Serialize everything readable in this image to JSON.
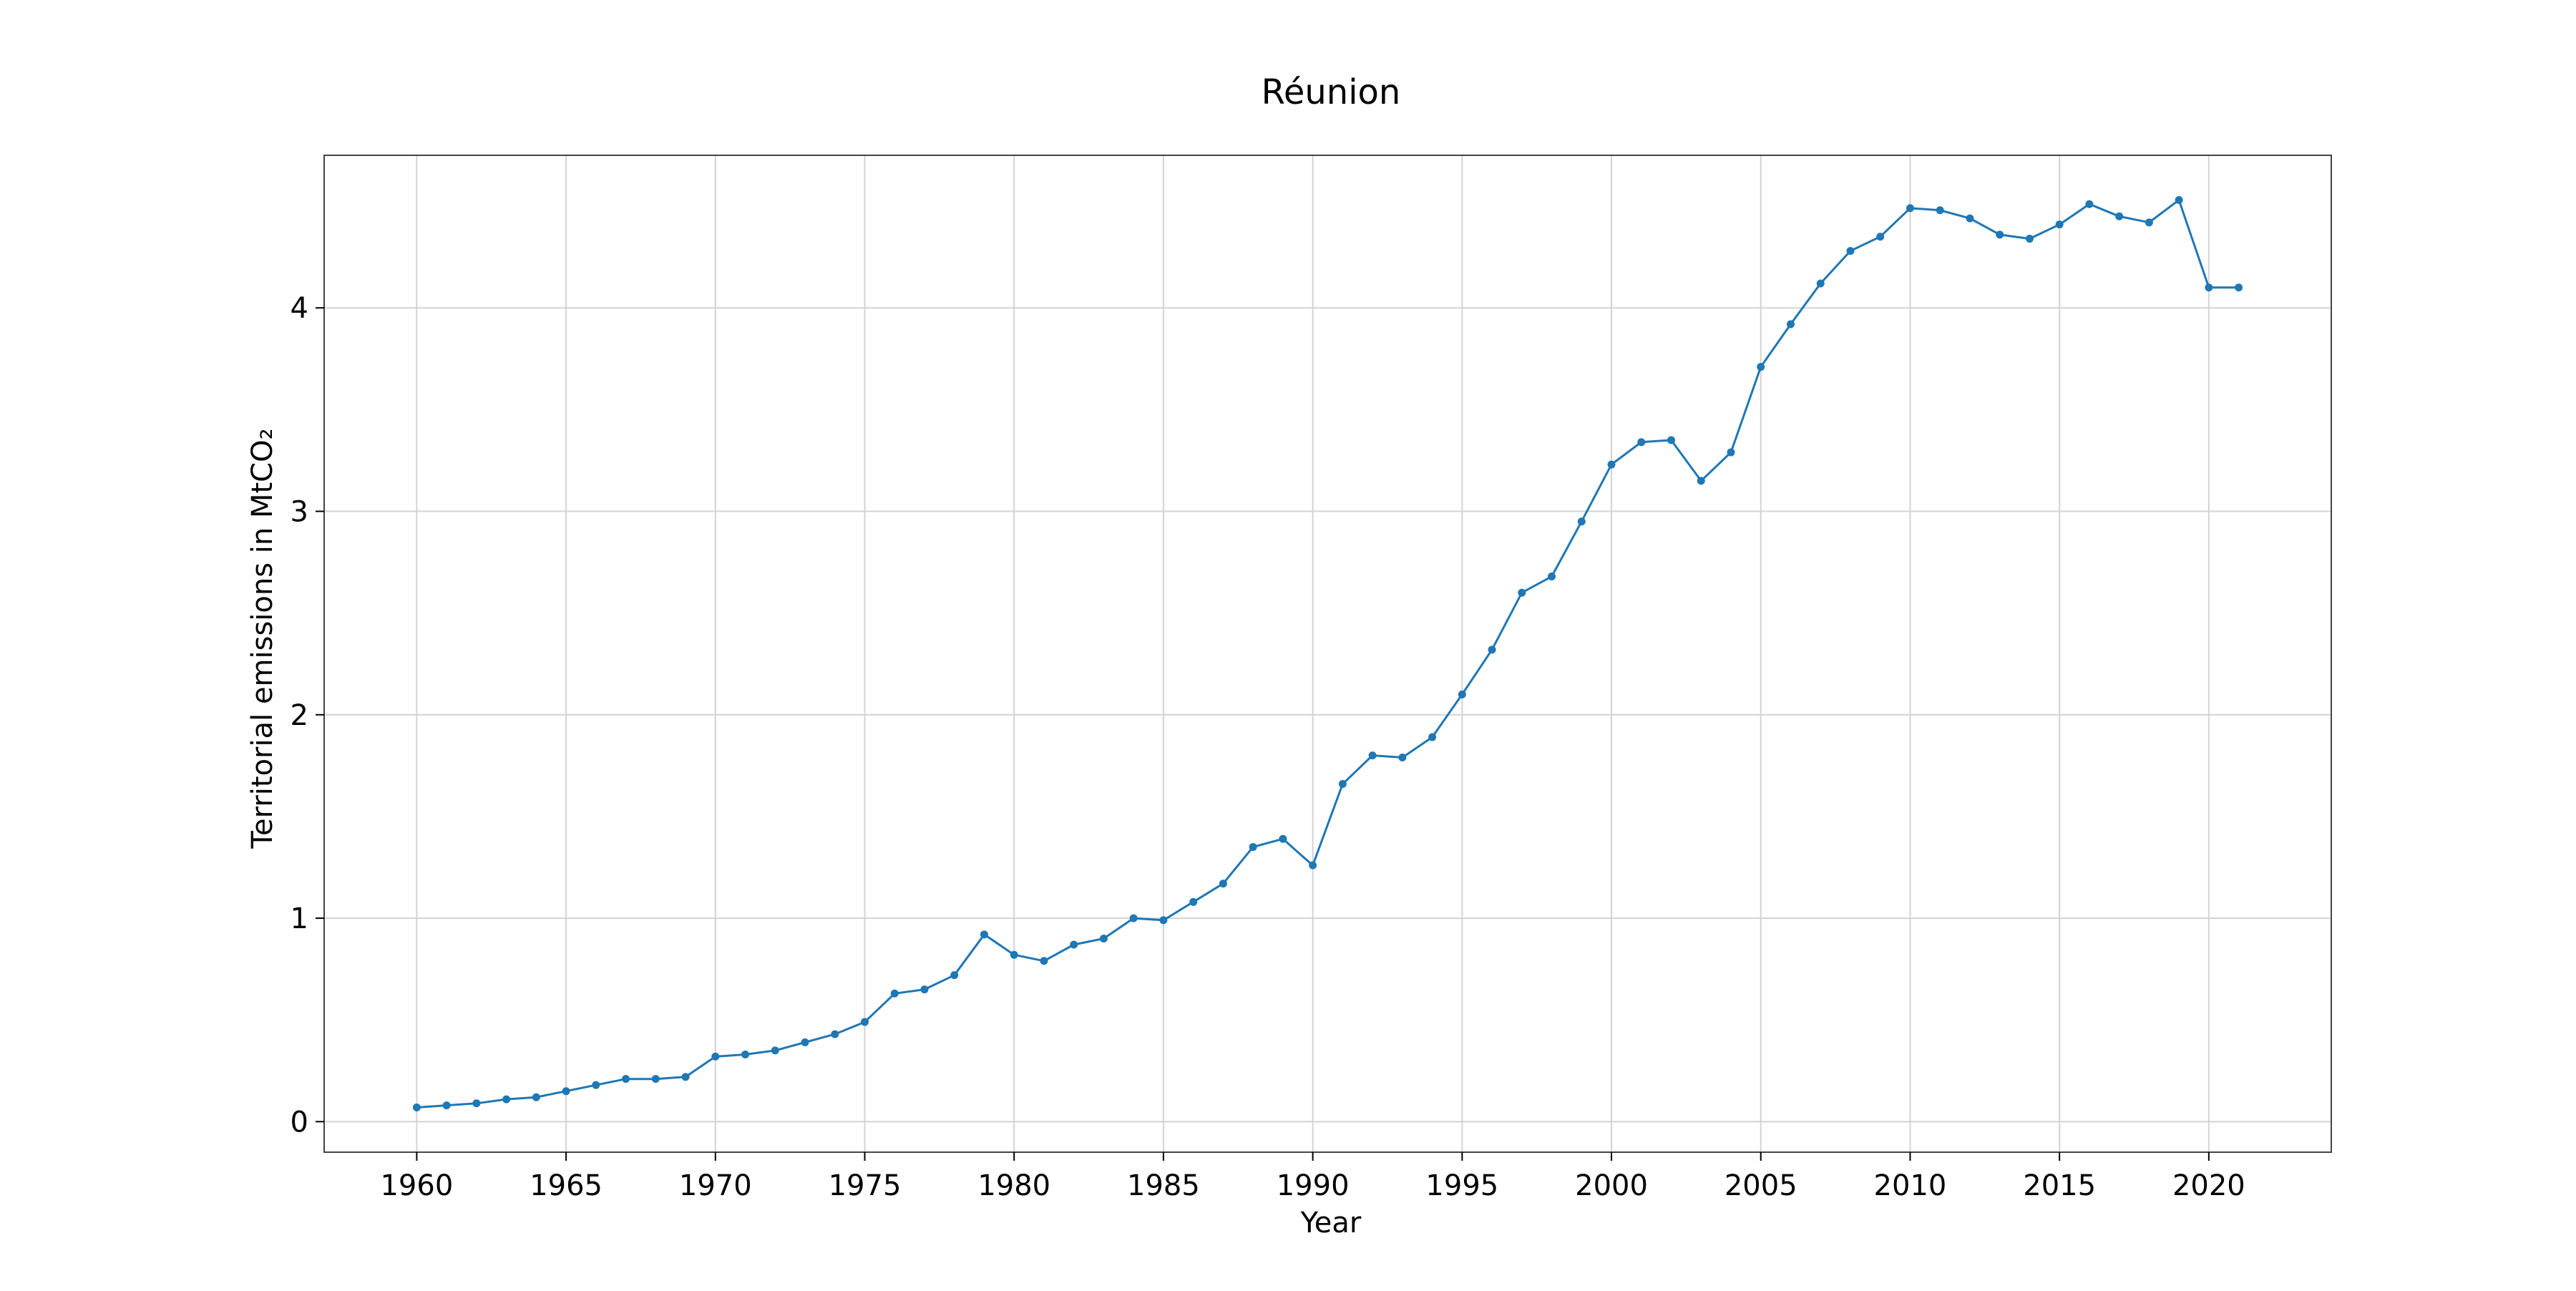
{
  "chart_data": {
    "type": "line",
    "title": "Réunion",
    "xlabel": "Year",
    "ylabel": "Territorial emissions in MtCO₂",
    "xlim": [
      1956.9,
      2024.1
    ],
    "ylim": [
      -0.15,
      4.75
    ],
    "x_ticks": [
      1960,
      1965,
      1970,
      1975,
      1980,
      1985,
      1990,
      1995,
      2000,
      2005,
      2010,
      2015,
      2020
    ],
    "y_ticks": [
      0,
      1,
      2,
      3,
      4
    ],
    "grid": true,
    "legend": "none",
    "colors": {
      "line": "#1f77b4",
      "grid": "#d3d3d3",
      "axes": "#444444"
    },
    "series": [
      {
        "x": [
          1960,
          1961,
          1962,
          1963,
          1964,
          1965,
          1966,
          1967,
          1968,
          1969,
          1970,
          1971,
          1972,
          1973,
          1974,
          1975,
          1976,
          1977,
          1978,
          1979,
          1980,
          1981,
          1982,
          1983,
          1984,
          1985,
          1986,
          1987,
          1988,
          1989,
          1990,
          1991,
          1992,
          1993,
          1994,
          1995,
          1996,
          1997,
          1998,
          1999,
          2000,
          2001,
          2002,
          2003,
          2004,
          2005,
          2006,
          2007,
          2008,
          2009,
          2010,
          2011,
          2012,
          2013,
          2014,
          2015,
          2016,
          2017,
          2018,
          2019,
          2020,
          2021
        ],
        "values": [
          0.07,
          0.08,
          0.09,
          0.11,
          0.12,
          0.15,
          0.18,
          0.21,
          0.21,
          0.22,
          0.32,
          0.33,
          0.35,
          0.39,
          0.43,
          0.49,
          0.63,
          0.65,
          0.72,
          0.92,
          0.82,
          0.79,
          0.87,
          0.9,
          1.0,
          0.99,
          1.08,
          1.17,
          1.35,
          1.39,
          1.26,
          1.66,
          1.8,
          1.79,
          1.89,
          2.1,
          2.32,
          2.6,
          2.68,
          2.95,
          3.23,
          3.34,
          3.35,
          3.15,
          3.29,
          3.71,
          3.92,
          4.12,
          4.28,
          4.35,
          4.49,
          4.48,
          4.44,
          4.36,
          4.34,
          4.41,
          4.51,
          4.45,
          4.42,
          4.53,
          4.1,
          4.1
        ]
      }
    ]
  }
}
